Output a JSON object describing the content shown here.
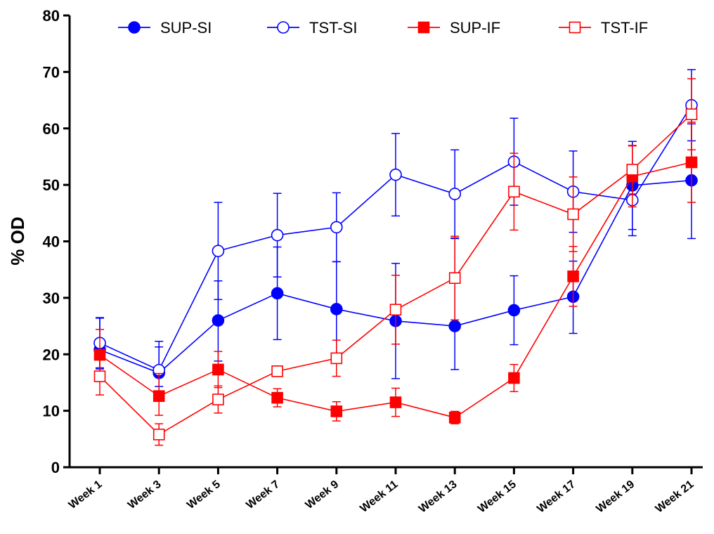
{
  "chart_data": {
    "type": "line",
    "title": "",
    "xlabel": "",
    "ylabel": "% OD",
    "ylim": [
      0,
      80
    ],
    "yticks": [
      0,
      10,
      20,
      30,
      40,
      50,
      60,
      70,
      80
    ],
    "categories": [
      "Week 1",
      "Week 3",
      "Week 5",
      "Week 7",
      "Week 9",
      "Week 11",
      "Week 13",
      "Week 15",
      "Week 17",
      "Week 19",
      "Week 21"
    ],
    "grid": false,
    "legend_position": "top",
    "series": [
      {
        "name": "SUP-SI",
        "color": "#0000ff",
        "marker": "circle",
        "filled": true,
        "values": [
          20.8,
          16.7,
          26.0,
          30.8,
          28.0,
          25.9,
          25.0,
          27.8,
          30.2,
          49.9,
          50.8
        ],
        "err_upper": [
          5.7,
          4.6,
          7.0,
          8.2,
          8.4,
          10.2,
          15.5,
          6.1,
          6.3,
          7.8,
          10.0
        ],
        "err_lower": [
          3.4,
          2.4,
          7.2,
          8.2,
          8.4,
          10.2,
          7.7,
          6.1,
          6.5,
          7.8,
          10.3
        ]
      },
      {
        "name": "TST-SI",
        "color": "#0000ff",
        "marker": "circle",
        "filled": false,
        "values": [
          22.0,
          17.2,
          38.3,
          41.1,
          42.5,
          51.8,
          48.4,
          54.1,
          48.8,
          47.3,
          64.1
        ],
        "err_upper": [
          4.4,
          5.1,
          8.6,
          7.4,
          6.1,
          7.3,
          7.8,
          7.7,
          7.2,
          10.4,
          6.3
        ],
        "err_lower": [
          4.4,
          5.1,
          8.6,
          7.4,
          6.1,
          7.3,
          7.8,
          7.7,
          7.2,
          6.3,
          6.3
        ]
      },
      {
        "name": "SUP-IF",
        "color": "#ff0000",
        "marker": "square",
        "filled": true,
        "values": [
          19.9,
          12.6,
          17.3,
          12.3,
          9.9,
          11.5,
          8.8,
          15.8,
          33.8,
          51.5,
          54.0
        ],
        "err_upper": [
          4.5,
          4.0,
          3.2,
          1.6,
          1.7,
          2.5,
          1.1,
          2.4,
          5.3,
          5.4,
          7.1
        ],
        "err_lower": [
          4.5,
          3.4,
          3.2,
          1.6,
          1.7,
          2.5,
          1.1,
          2.4,
          5.3,
          5.4,
          7.1
        ]
      },
      {
        "name": "TST-IF",
        "color": "#ff0000",
        "marker": "square",
        "filled": false,
        "values": [
          16.1,
          5.8,
          12.0,
          17.0,
          19.3,
          27.9,
          33.5,
          48.8,
          44.8,
          52.7,
          62.5
        ],
        "err_upper": [
          3.3,
          1.9,
          2.4,
          0.9,
          3.2,
          6.1,
          7.4,
          6.8,
          6.6,
          4.3,
          6.3
        ],
        "err_lower": [
          3.3,
          1.9,
          2.4,
          0.9,
          3.2,
          6.1,
          7.4,
          6.8,
          6.6,
          4.3,
          6.3
        ]
      }
    ]
  }
}
